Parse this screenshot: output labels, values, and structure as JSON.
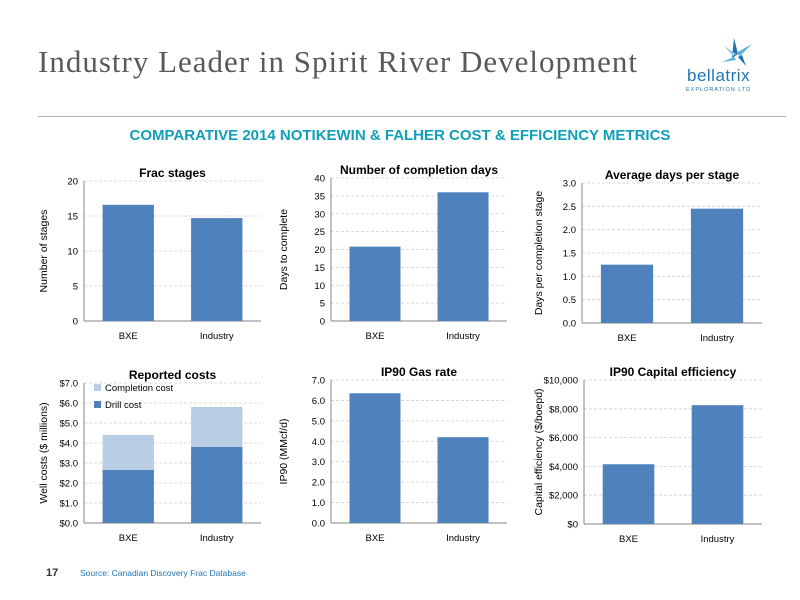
{
  "header": {
    "title": "Industry Leader in Spirit River Development",
    "logo_name": "bellatrix",
    "logo_sub": "EXPLORATION LTD",
    "subtitle": "COMPARATIVE 2014 NOTIKEWIN & FALHER COST & EFFICIENCY METRICS"
  },
  "footer": {
    "source": "Source: Canadian Discovery Frac Database",
    "page_number": "17"
  },
  "colors": {
    "bar": "#4f81bd",
    "bar_light": "#b9cde5",
    "title": "#595959",
    "subtitle": "#0fa0b8",
    "brand": "#1f74b0"
  },
  "chart_data": [
    {
      "type": "bar",
      "title": "Frac stages",
      "xlabel": "",
      "ylabel": "Number of stages",
      "categories": [
        "BXE",
        "Industry"
      ],
      "values": [
        16.6,
        14.7
      ],
      "ylim": [
        0,
        20
      ],
      "yticks": [
        "0",
        "5",
        "10",
        "15",
        "20"
      ],
      "grid": true
    },
    {
      "type": "bar",
      "title": "Number of completion days",
      "xlabel": "",
      "ylabel": "Days to complete",
      "categories": [
        "BXE",
        "Industry"
      ],
      "values": [
        20.8,
        36
      ],
      "ylim": [
        0,
        40
      ],
      "yticks": [
        "0",
        "5",
        "10",
        "15",
        "20",
        "25",
        "30",
        "35",
        "40"
      ],
      "grid": true
    },
    {
      "type": "bar",
      "title": "Average days per stage",
      "xlabel": "",
      "ylabel": "Days per completion stage",
      "categories": [
        "BXE",
        "Industry"
      ],
      "values": [
        1.25,
        2.45
      ],
      "ylim": [
        0,
        3
      ],
      "yticks": [
        "0.0",
        "0.5",
        "1.0",
        "1.5",
        "2.0",
        "2.5",
        "3.0"
      ],
      "grid": true
    },
    {
      "type": "bar",
      "stacked": true,
      "title": "Reported costs",
      "xlabel": "",
      "ylabel": "Well costs ($ millions)",
      "categories": [
        "BXE",
        "Industry"
      ],
      "series": [
        {
          "name": "Drill cost",
          "values": [
            2.65,
            3.8
          ]
        },
        {
          "name": "Completion cost",
          "values": [
            1.75,
            2.0
          ]
        }
      ],
      "ylim": [
        0,
        7
      ],
      "yticks": [
        "$0.0",
        "$1.0",
        "$2.0",
        "$3.0",
        "$4.0",
        "$5.0",
        "$6.0",
        "$7.0"
      ],
      "legend": "top-left",
      "grid": true
    },
    {
      "type": "bar",
      "title": "IP90 Gas rate",
      "xlabel": "",
      "ylabel": "IP90 (MMcf/d)",
      "categories": [
        "BXE",
        "Industry"
      ],
      "values": [
        6.35,
        4.2
      ],
      "ylim": [
        0,
        7
      ],
      "yticks": [
        "0.0",
        "1.0",
        "2.0",
        "3.0",
        "4.0",
        "5.0",
        "6.0",
        "7.0"
      ],
      "grid": true
    },
    {
      "type": "bar",
      "title": "IP90 Capital efficiency",
      "xlabel": "",
      "ylabel": "Capital efficiency ($/boepd)",
      "categories": [
        "BXE",
        "Industry"
      ],
      "values": [
        4150,
        8250
      ],
      "ylim": [
        0,
        10000
      ],
      "yticks": [
        "$0",
        "$2,000",
        "$4,000",
        "$6,000",
        "$8,000",
        "$10,000"
      ],
      "grid": true
    }
  ]
}
